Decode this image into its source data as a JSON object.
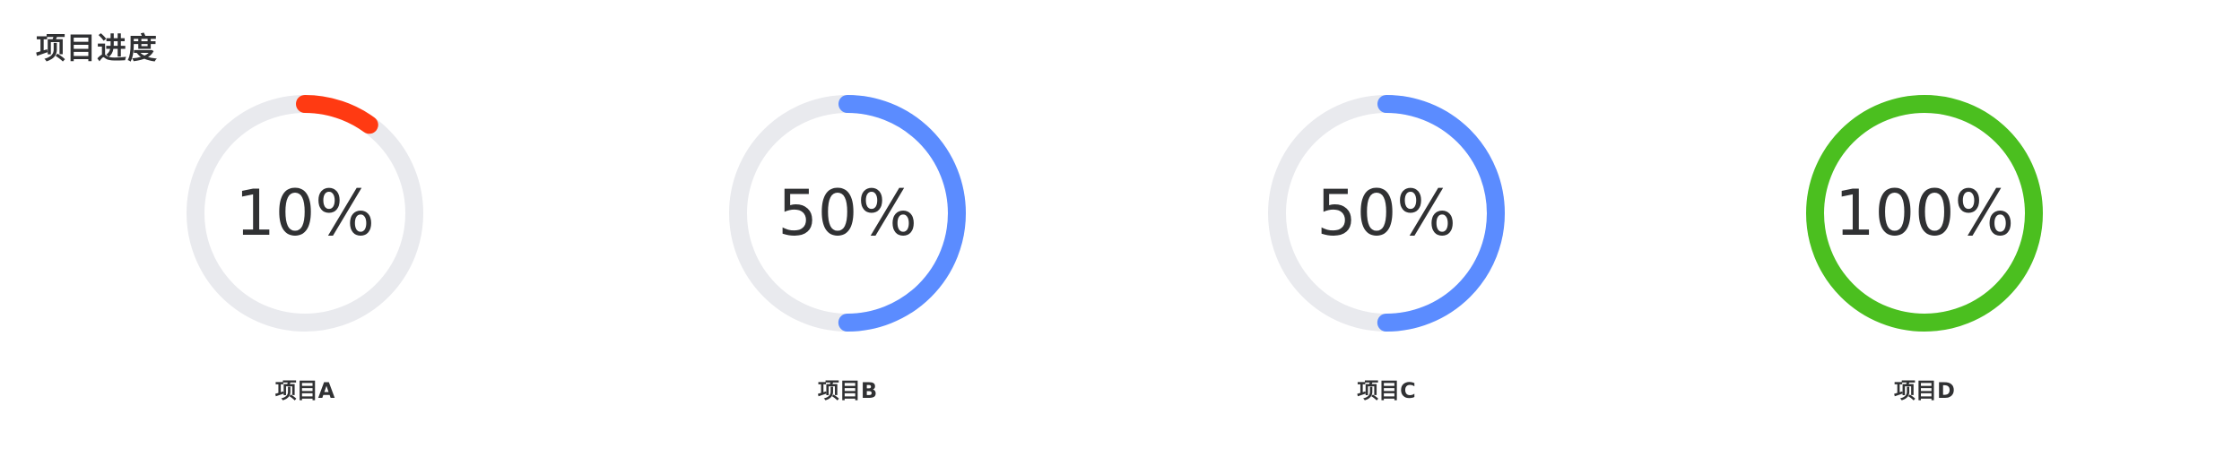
{
  "panel": {
    "title": "项目进度"
  },
  "colors": {
    "track": "#e9eaee",
    "red": "#ff3a12",
    "blue": "#5b8cff",
    "green": "#4bbf1f"
  },
  "projects": [
    {
      "name": "项目A",
      "percent_label": "10%",
      "progress": 0.1,
      "color": "#ff3a12"
    },
    {
      "name": "项目B",
      "percent_label": "50%",
      "progress": 0.5,
      "color": "#5b8cff"
    },
    {
      "name": "项目C",
      "percent_label": "50%",
      "progress": 0.5,
      "color": "#5b8cff"
    },
    {
      "name": "项目D",
      "percent_label": "100%",
      "progress": 1.0,
      "color": "#4bbf1f"
    }
  ]
}
